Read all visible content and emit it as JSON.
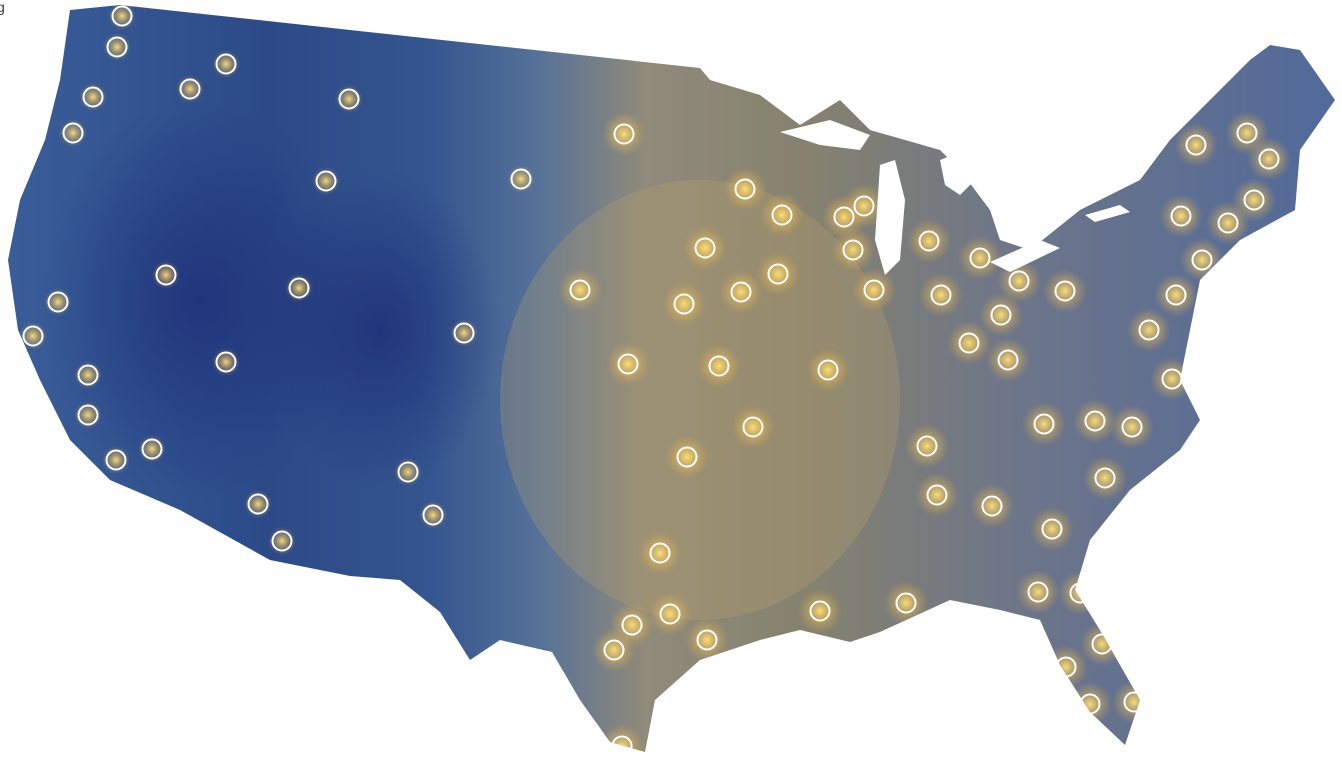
{
  "map": {
    "corner_text": "g"
  }
}
